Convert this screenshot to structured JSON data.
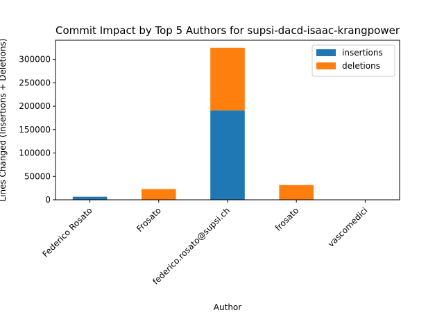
{
  "chart_data": {
    "type": "bar",
    "stacked": true,
    "title": "Commit Impact by Top 5 Authors for supsi-dacd-isaac-krangpower",
    "xlabel": "Author",
    "ylabel": "Lines Changed (Insertions + Deletions)",
    "categories": [
      "Federico Rosato",
      "Frosato",
      "federico.rosato@supsi.ch",
      "frosato",
      "vascomedici"
    ],
    "series": [
      {
        "name": "insertions",
        "color": "#1f77b4",
        "values": [
          6500,
          0,
          191000,
          0,
          300
        ]
      },
      {
        "name": "deletions",
        "color": "#ff7f0e",
        "values": [
          200,
          23000,
          134000,
          31500,
          200
        ]
      }
    ],
    "ylim": [
      0,
      341000
    ],
    "yticks": [
      0,
      50000,
      100000,
      150000,
      200000,
      250000,
      300000
    ],
    "grid": false,
    "legend_position": "top-right"
  }
}
